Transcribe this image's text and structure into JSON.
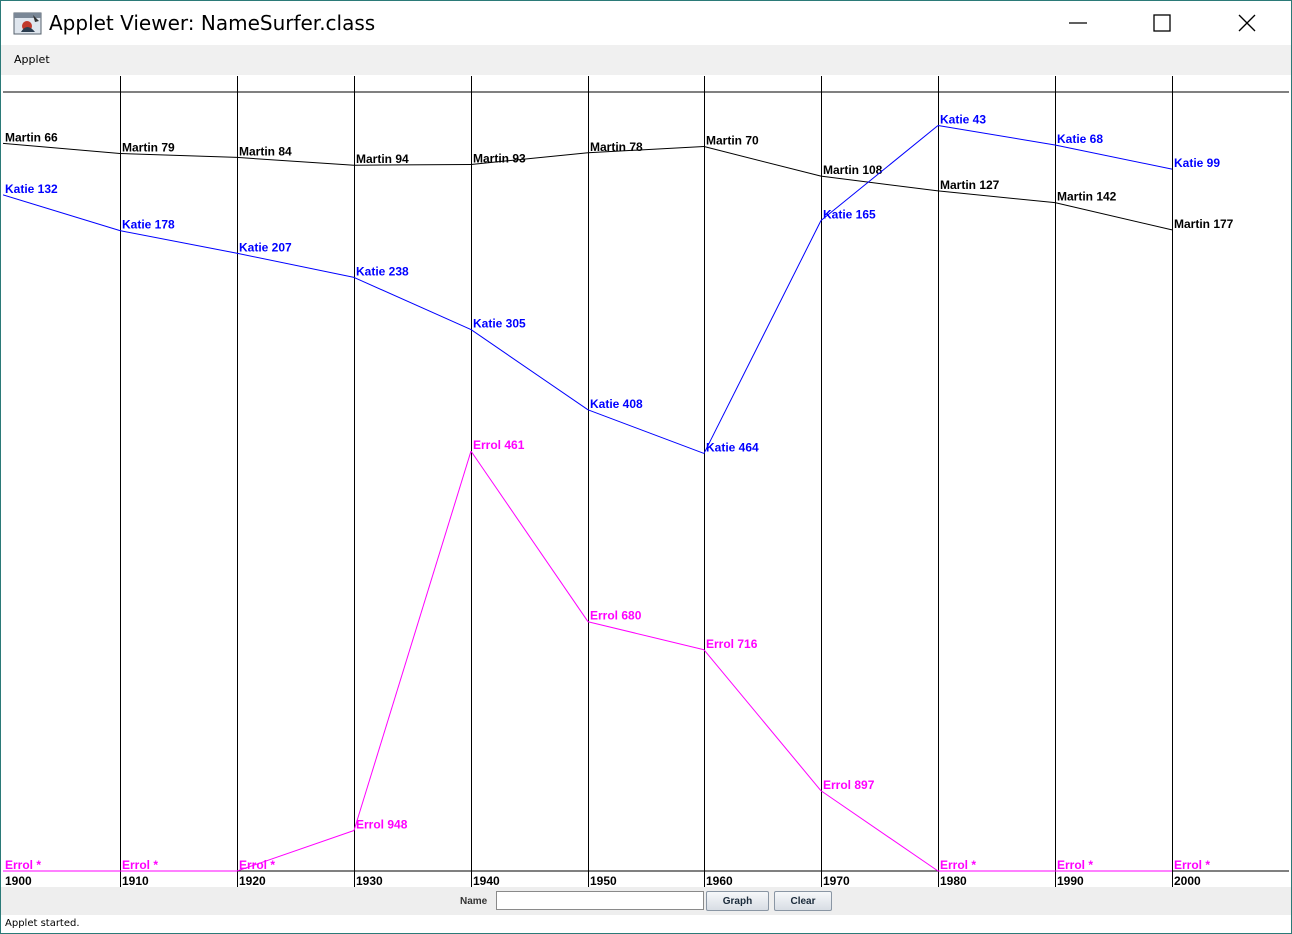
{
  "window": {
    "title": "Applet Viewer: NameSurfer.class"
  },
  "menu": {
    "items": [
      "Applet"
    ]
  },
  "controls": {
    "name_label": "Name",
    "name_value": "",
    "graph_label": "Graph",
    "clear_label": "Clear"
  },
  "status": {
    "text": "Applet started."
  },
  "chart_data": {
    "type": "line",
    "title": "",
    "xlabel": "",
    "ylabel": "",
    "x": [
      1900,
      1910,
      1920,
      1930,
      1940,
      1950,
      1960,
      1970,
      1980,
      1990,
      2000
    ],
    "y_axis": "rank (top = 1, bottom = 1000)",
    "ylim": [
      1,
      1000
    ],
    "unranked_marker": "*",
    "grid": true,
    "series": [
      {
        "name": "Martin",
        "color": "#000000",
        "ranks": [
          66,
          79,
          84,
          94,
          93,
          78,
          70,
          108,
          127,
          142,
          177
        ],
        "labels": [
          "Martin 66",
          "Martin 79",
          "Martin 84",
          "Martin 94",
          "Martin 93",
          "Martin 78",
          "Martin 70",
          "Martin 108",
          "Martin 127",
          "Martin 142",
          "Martin 177"
        ]
      },
      {
        "name": "Katie",
        "color": "#0000ff",
        "ranks": [
          132,
          178,
          207,
          238,
          305,
          408,
          464,
          165,
          43,
          68,
          99
        ],
        "labels": [
          "Katie 132",
          "Katie 178",
          "Katie 207",
          "Katie 238",
          "Katie 305",
          "Katie 408",
          "Katie 464",
          "Katie 165",
          "Katie 43",
          "Katie 68",
          "Katie 99"
        ]
      },
      {
        "name": "Errol",
        "color": "#ff00ff",
        "ranks": [
          0,
          0,
          0,
          948,
          461,
          680,
          716,
          897,
          0,
          0,
          0
        ],
        "labels": [
          "Errol *",
          "Errol *",
          "Errol *",
          "Errol 948",
          "Errol 461",
          "Errol 680",
          "Errol 716",
          "Errol 897",
          "Errol *",
          "Errol *",
          "Errol *"
        ]
      }
    ]
  }
}
